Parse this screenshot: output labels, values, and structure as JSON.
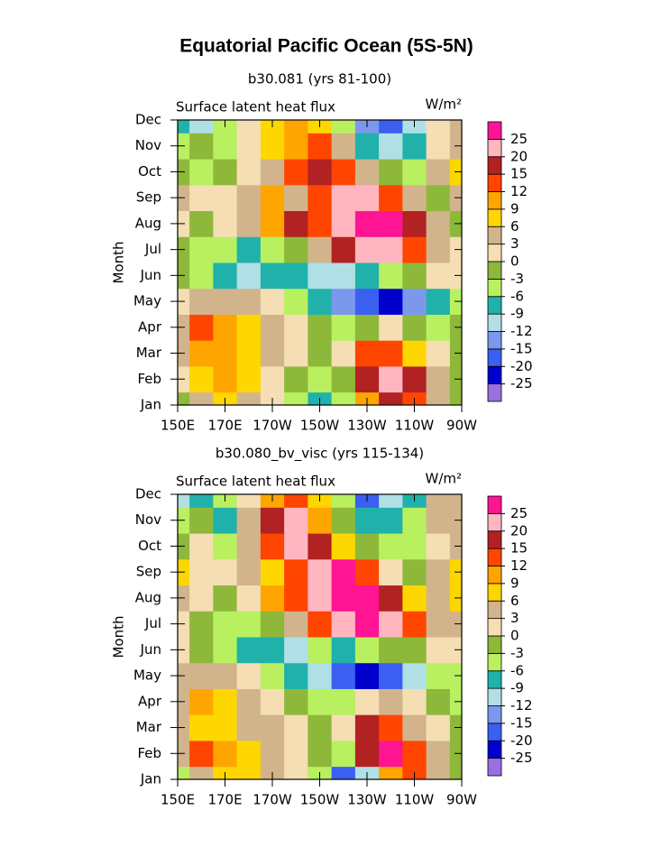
{
  "title": "Equatorial Pacific Ocean (5S-5N)",
  "chart_data": [
    {
      "type": "contour",
      "subtitle": "b30.081 (yrs 81-100)",
      "left_label": "Surface latent heat flux",
      "right_label": "W/m²",
      "ylabel": "Month",
      "categories": [
        "Jan",
        "Feb",
        "Mar",
        "Apr",
        "May",
        "Jun",
        "Jul",
        "Aug",
        "Sep",
        "Oct",
        "Nov",
        "Dec"
      ],
      "x": [
        150,
        160,
        170,
        180,
        190,
        200,
        210,
        220,
        230,
        240,
        250,
        260,
        270
      ],
      "xlim": [
        150,
        270
      ],
      "xticks": [
        {
          "value": 150,
          "label": "150E"
        },
        {
          "value": 170,
          "label": "170E"
        },
        {
          "value": 190,
          "label": "170W"
        },
        {
          "value": 210,
          "label": "150W"
        },
        {
          "value": 230,
          "label": "130W"
        },
        {
          "value": 250,
          "label": "110W"
        },
        {
          "value": 270,
          "label": "90W"
        }
      ],
      "levels": [
        -25,
        -20,
        -15,
        -12,
        -9,
        -6,
        -3,
        0,
        3,
        6,
        9,
        12,
        15,
        20,
        25
      ],
      "colors": [
        "#9a6fe0",
        "#0000cd",
        "#3b5ff0",
        "#7b98ec",
        "#b0e0e6",
        "#20b2aa",
        "#b8f060",
        "#8db83a",
        "#f5deb3",
        "#d2b48c",
        "#ffd700",
        "#ffa500",
        "#ff4500",
        "#b22222",
        "#ffb6c1",
        "#ff1493"
      ],
      "z": [
        [
          -3,
          3,
          6,
          3,
          0,
          -6,
          -9,
          -6,
          9,
          15,
          12,
          3,
          -3
        ],
        [
          0,
          6,
          9,
          6,
          0,
          -3,
          -6,
          -3,
          15,
          20,
          15,
          3,
          -3
        ],
        [
          3,
          9,
          9,
          6,
          3,
          0,
          -3,
          0,
          12,
          12,
          6,
          0,
          -3
        ],
        [
          3,
          12,
          9,
          6,
          3,
          0,
          -3,
          -6,
          -3,
          0,
          -3,
          -6,
          -3
        ],
        [
          0,
          3,
          3,
          3,
          0,
          -6,
          -9,
          -15,
          -20,
          -25,
          -15,
          -9,
          -6
        ],
        [
          -3,
          -6,
          -9,
          -12,
          -9,
          -9,
          -12,
          -12,
          -9,
          -6,
          -3,
          0,
          0
        ],
        [
          -3,
          -6,
          -6,
          -9,
          -6,
          -3,
          3,
          15,
          20,
          20,
          12,
          3,
          0
        ],
        [
          0,
          -3,
          0,
          3,
          9,
          15,
          12,
          20,
          25,
          25,
          15,
          3,
          -3
        ],
        [
          3,
          0,
          0,
          3,
          9,
          3,
          12,
          20,
          20,
          12,
          3,
          -3,
          3
        ],
        [
          -3,
          -6,
          -3,
          0,
          3,
          12,
          15,
          12,
          3,
          -3,
          -6,
          3,
          6
        ],
        [
          -6,
          -3,
          -6,
          0,
          6,
          9,
          12,
          3,
          -9,
          -12,
          -9,
          0,
          3
        ],
        [
          -9,
          -12,
          -6,
          0,
          6,
          9,
          6,
          -6,
          -15,
          -20,
          -12,
          0,
          3
        ]
      ]
    },
    {
      "type": "contour",
      "subtitle": "b30.080_bv_visc (yrs 115-134)",
      "left_label": "Surface latent heat flux",
      "right_label": "W/m²",
      "ylabel": "Month",
      "categories": [
        "Jan",
        "Feb",
        "Mar",
        "Apr",
        "May",
        "Jun",
        "Jul",
        "Aug",
        "Sep",
        "Oct",
        "Nov",
        "Dec"
      ],
      "x": [
        150,
        160,
        170,
        180,
        190,
        200,
        210,
        220,
        230,
        240,
        250,
        260,
        270
      ],
      "xlim": [
        150,
        270
      ],
      "xticks": [
        {
          "value": 150,
          "label": "150E"
        },
        {
          "value": 170,
          "label": "170E"
        },
        {
          "value": 190,
          "label": "170W"
        },
        {
          "value": 210,
          "label": "150W"
        },
        {
          "value": 230,
          "label": "130W"
        },
        {
          "value": 250,
          "label": "110W"
        },
        {
          "value": 270,
          "label": "90W"
        }
      ],
      "levels": [
        -25,
        -20,
        -15,
        -12,
        -9,
        -6,
        -3,
        0,
        3,
        6,
        9,
        12,
        15,
        20,
        25
      ],
      "colors": [
        "#9a6fe0",
        "#0000cd",
        "#3b5ff0",
        "#7b98ec",
        "#b0e0e6",
        "#20b2aa",
        "#b8f060",
        "#8db83a",
        "#f5deb3",
        "#d2b48c",
        "#ffd700",
        "#ffa500",
        "#ff4500",
        "#b22222",
        "#ffb6c1",
        "#ff1493"
      ],
      "z": [
        [
          -6,
          3,
          6,
          6,
          3,
          0,
          -6,
          -20,
          -12,
          9,
          12,
          3,
          -3
        ],
        [
          3,
          12,
          9,
          6,
          3,
          0,
          -3,
          -6,
          15,
          25,
          12,
          3,
          -3
        ],
        [
          3,
          6,
          6,
          3,
          3,
          0,
          -3,
          0,
          15,
          12,
          3,
          0,
          -3
        ],
        [
          3,
          9,
          6,
          3,
          0,
          -3,
          -6,
          -6,
          0,
          3,
          0,
          -3,
          -6
        ],
        [
          3,
          3,
          3,
          0,
          -6,
          -9,
          -12,
          -20,
          -25,
          -20,
          -12,
          -6,
          -6
        ],
        [
          0,
          -3,
          -6,
          -9,
          -9,
          -12,
          -6,
          -9,
          -6,
          -3,
          -3,
          0,
          0
        ],
        [
          0,
          -3,
          -6,
          -6,
          -3,
          3,
          12,
          20,
          25,
          20,
          12,
          3,
          3
        ],
        [
          3,
          0,
          -3,
          0,
          9,
          12,
          20,
          25,
          25,
          15,
          6,
          3,
          6
        ],
        [
          6,
          0,
          0,
          3,
          6,
          12,
          20,
          25,
          12,
          0,
          -3,
          3,
          6
        ],
        [
          -3,
          0,
          -6,
          3,
          12,
          20,
          15,
          6,
          -3,
          -6,
          -6,
          0,
          3
        ],
        [
          -6,
          -3,
          -9,
          3,
          15,
          20,
          9,
          -3,
          -9,
          -9,
          -6,
          3,
          3
        ],
        [
          -12,
          -9,
          -6,
          0,
          9,
          12,
          6,
          -6,
          -20,
          -12,
          -9,
          3,
          3
        ]
      ]
    }
  ]
}
